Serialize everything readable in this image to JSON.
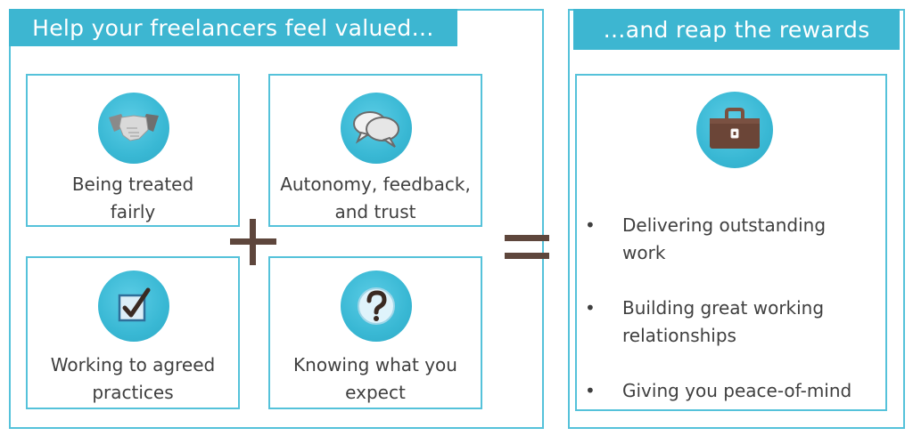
{
  "left_section": {
    "title": "Help your freelancers feel valued…",
    "cards": [
      {
        "label": "Being treated\nfairly",
        "icon": "handshake-icon"
      },
      {
        "label": "Autonomy, feedback,\nand trust",
        "icon": "speech-bubbles-icon"
      },
      {
        "label": "Working to agreed\npractices",
        "icon": "checkbox-icon"
      },
      {
        "label": "Knowing what you\nexpect",
        "icon": "question-mark-icon"
      }
    ]
  },
  "operators": {
    "plus": "+",
    "equals": "="
  },
  "right_section": {
    "title": "…and reap the rewards",
    "icon": "briefcase-icon",
    "bullets": [
      "Delivering outstanding\nwork",
      "Building great working\nrelationships",
      "Giving you peace-of-mind"
    ]
  },
  "colors": {
    "accent": "#3db6d1",
    "border": "#55c2da",
    "operator": "#5e463c",
    "text": "#3f3f3f"
  }
}
